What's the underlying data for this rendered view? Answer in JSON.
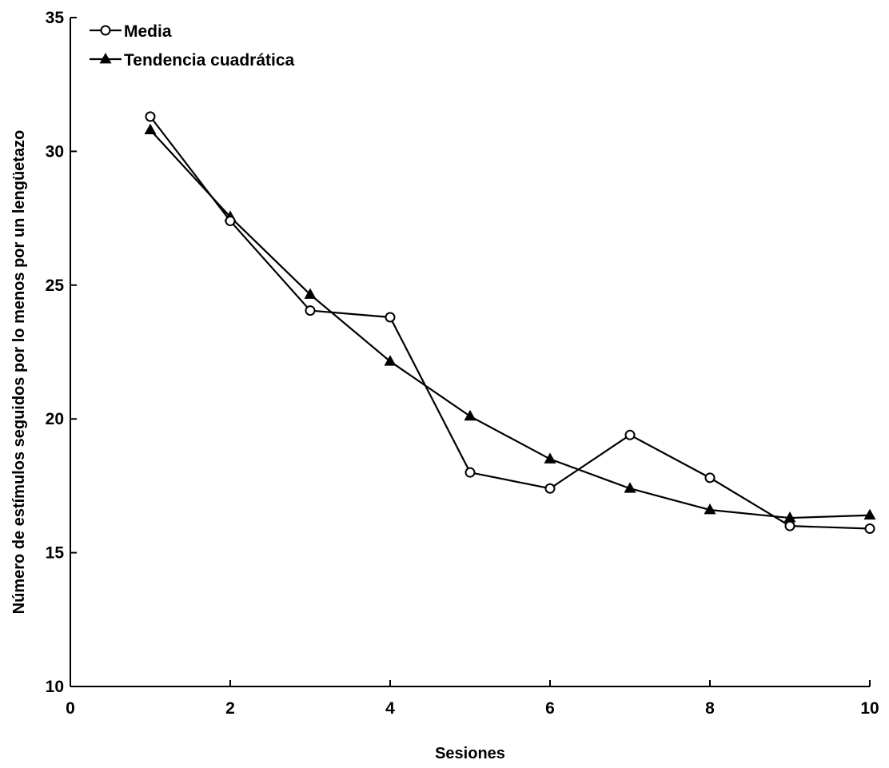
{
  "chart_data": {
    "type": "line",
    "title": "",
    "xlabel": "Sesiones",
    "ylabel": "Número de estímulos seguidos por lo menos por un lengüetazo",
    "xlim": [
      0,
      10
    ],
    "ylim": [
      10,
      35
    ],
    "xticks": [
      0,
      2,
      4,
      6,
      8,
      10
    ],
    "yticks": [
      10,
      15,
      20,
      25,
      30,
      35
    ],
    "grid": false,
    "legend_position": "top-left",
    "x": [
      1,
      2,
      3,
      4,
      5,
      6,
      7,
      8,
      9,
      10
    ],
    "series": [
      {
        "name": "Media",
        "marker": "open-circle",
        "values": [
          31.3,
          27.4,
          24.05,
          23.8,
          18.0,
          17.4,
          19.4,
          17.8,
          16.0,
          15.9
        ]
      },
      {
        "name": "Tendencia cuadrática",
        "marker": "filled-triangle",
        "values": [
          30.8,
          27.55,
          24.65,
          22.15,
          20.1,
          18.5,
          17.4,
          16.6,
          16.3,
          16.4
        ]
      }
    ]
  }
}
